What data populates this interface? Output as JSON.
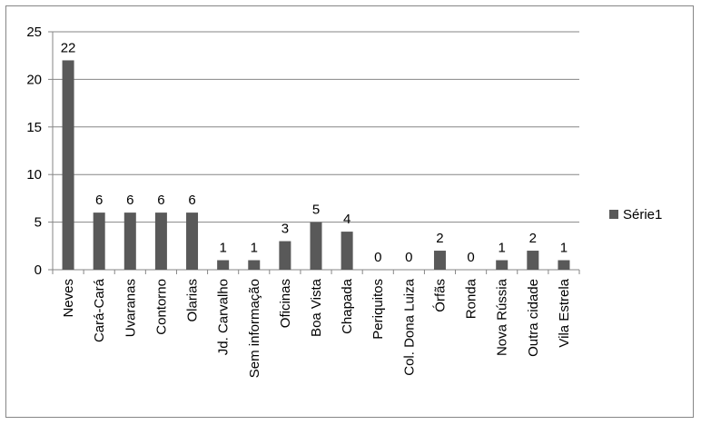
{
  "chart_data": {
    "type": "bar",
    "categories": [
      "Neves",
      "Cará-Cará",
      "Uvaranas",
      "Contorno",
      "Olarias",
      "Jd. Carvalho",
      "Sem informação",
      "Oficinas",
      "Boa Vista",
      "Chapada",
      "Periquitos",
      "Col. Dona Luiza",
      "Órfãs",
      "Ronda",
      "Nova Rússia",
      "Outra cidade",
      "Vila Estrela"
    ],
    "series": [
      {
        "name": "Série1",
        "values": [
          22,
          6,
          6,
          6,
          6,
          1,
          1,
          3,
          5,
          4,
          0,
          0,
          2,
          0,
          1,
          2,
          1
        ],
        "color": "#595959"
      }
    ],
    "ylim": [
      0,
      25
    ],
    "yticks": [
      0,
      5,
      10,
      15,
      20,
      25
    ],
    "gridlines": true,
    "data_labels": true,
    "legend_position": "right",
    "gridline_color": "#868686",
    "axis_color": "#868686"
  }
}
